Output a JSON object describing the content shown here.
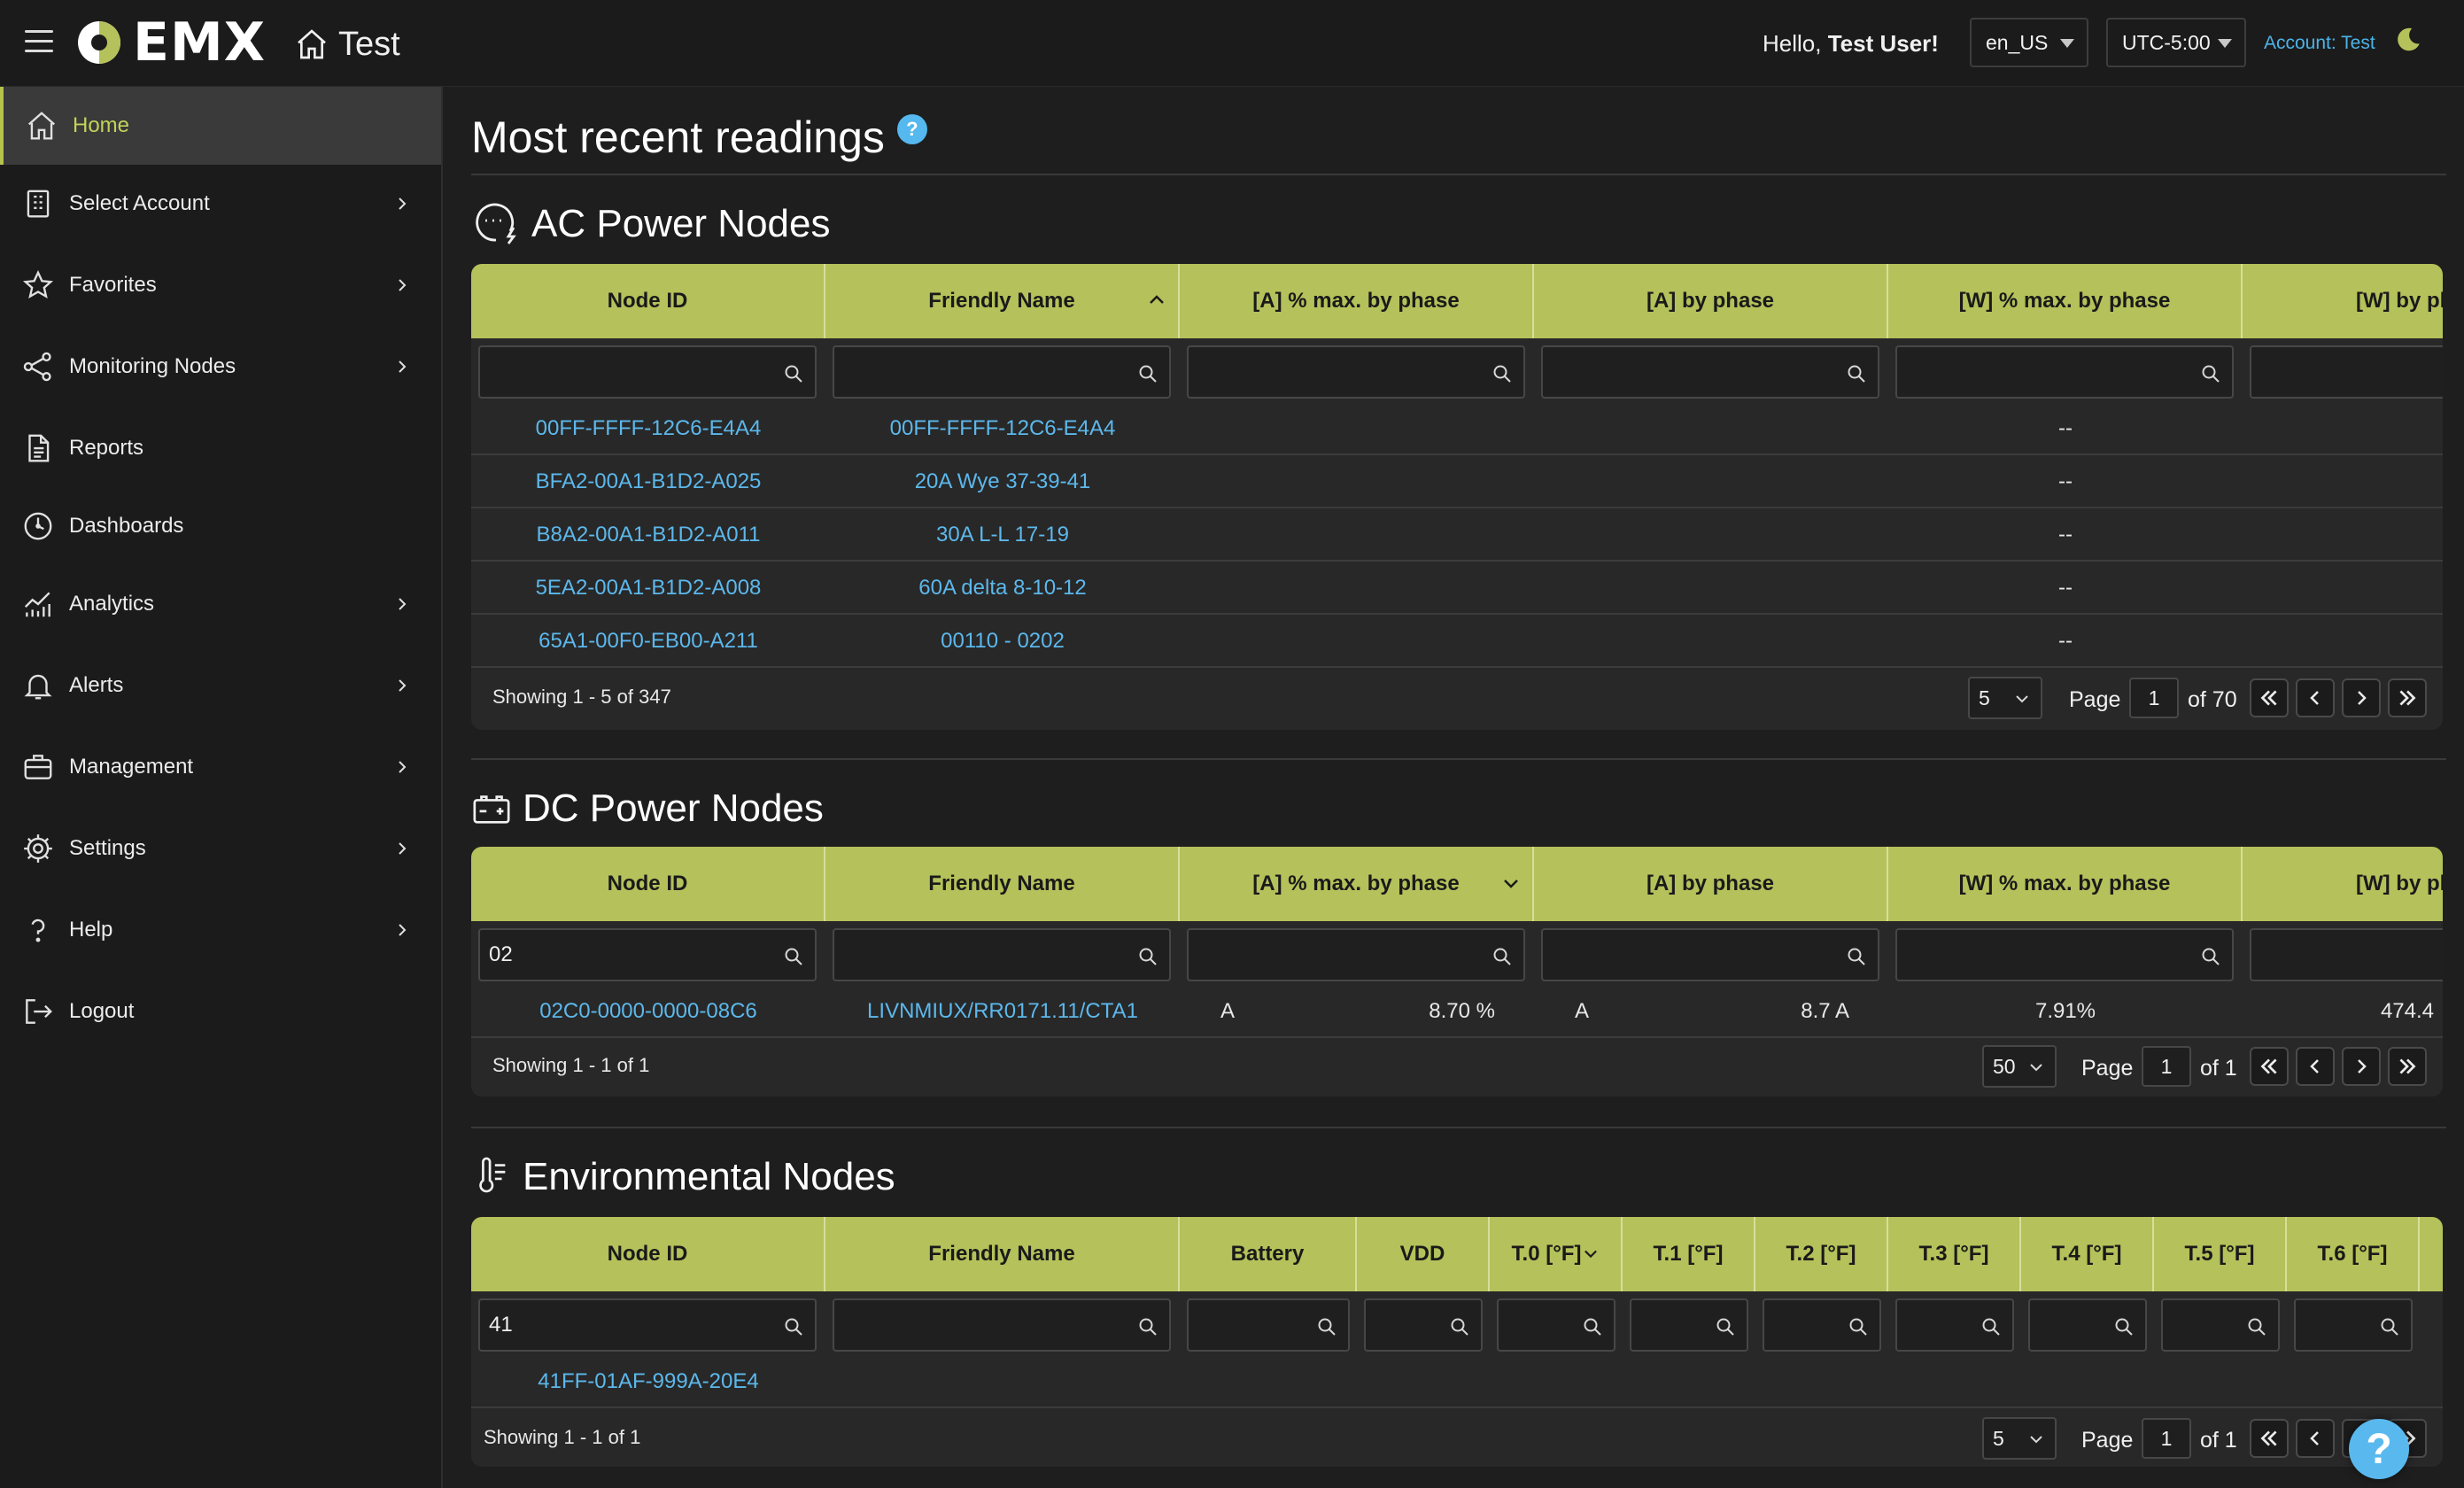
{
  "header": {
    "app_name": "EMX",
    "breadcrumb": "Test",
    "greeting_prefix": "Hello, ",
    "user_name": "Test User!",
    "locale": "en_US",
    "timezone": "UTC-5:00",
    "account": "Account: Test"
  },
  "sidebar": {
    "items": [
      {
        "label": "Home",
        "icon": "home-icon",
        "active": true
      },
      {
        "label": "Select Account",
        "icon": "building-icon"
      },
      {
        "label": "Favorites",
        "icon": "star-icon"
      },
      {
        "label": "Monitoring Nodes",
        "icon": "share-nodes-icon"
      },
      {
        "label": "Reports",
        "icon": "document-icon"
      },
      {
        "label": "Dashboards",
        "icon": "gauge-icon"
      },
      {
        "label": "Analytics",
        "icon": "chart-icon"
      },
      {
        "label": "Alerts",
        "icon": "bell-icon"
      },
      {
        "label": "Management",
        "icon": "briefcase-icon"
      },
      {
        "label": "Settings",
        "icon": "gear-icon"
      },
      {
        "label": "Help",
        "icon": "question-icon"
      },
      {
        "label": "Logout",
        "icon": "logout-icon"
      }
    ]
  },
  "page": {
    "title": "Most recent readings",
    "help": "?"
  },
  "ac": {
    "title": "AC Power Nodes",
    "columns": [
      "Node ID",
      "Friendly Name",
      "[A] % max. by phase",
      "[A] by phase",
      "[W] % max. by phase",
      "[W] by ph"
    ],
    "filters": [
      "",
      "",
      "",
      "",
      "",
      ""
    ],
    "rows": [
      {
        "node_id": "00FF-FFFF-12C6-E4A4",
        "name": "00FF-FFFF-12C6-E4A4",
        "w_pct": "--"
      },
      {
        "node_id": "BFA2-00A1-B1D2-A025",
        "name": "20A Wye 37-39-41",
        "w_pct": "--"
      },
      {
        "node_id": "B8A2-00A1-B1D2-A011",
        "name": "30A L-L 17-19",
        "w_pct": "--"
      },
      {
        "node_id": "5EA2-00A1-B1D2-A008",
        "name": "60A delta 8-10-12",
        "w_pct": "--"
      },
      {
        "node_id": "65A1-00F0-EB00-A211",
        "name": "00110 - 0202",
        "w_pct": "--"
      }
    ],
    "showing": "Showing 1 - 5 of 347",
    "page_size": "5",
    "page_label": "Page",
    "page": "1",
    "of": "of 70"
  },
  "dc": {
    "title": "DC Power Nodes",
    "columns": [
      "Node ID",
      "Friendly Name",
      "[A] % max. by phase",
      "[A] by phase",
      "[W] % max. by phase",
      "[W] by ph"
    ],
    "filters": [
      "02",
      "",
      "",
      "",
      "",
      ""
    ],
    "rows": [
      {
        "node_id": "02C0-0000-0000-08C6",
        "name": "LIVNMIUX/RR0171.11/CTA1",
        "a_pct_phase": "A",
        "a_pct": "8.70 %",
        "a_phase": "A",
        "a_val": "8.7 A",
        "w_pct": "7.91%",
        "w_val": "474.4"
      }
    ],
    "showing": "Showing 1 - 1 of 1",
    "page_size": "50",
    "page_label": "Page",
    "page": "1",
    "of": "of 1"
  },
  "env": {
    "title": "Environmental Nodes",
    "columns": [
      "Node ID",
      "Friendly Name",
      "Battery",
      "VDD",
      "T.0 [°F]",
      "T.1 [°F]",
      "T.2 [°F]",
      "T.3 [°F]",
      "T.4 [°F]",
      "T.5 [°F]",
      "T.6 [°F]"
    ],
    "filters": [
      "41",
      "",
      "",
      "",
      "",
      "",
      "",
      "",
      "",
      "",
      ""
    ],
    "rows": [
      {
        "node_id": "41FF-01AF-999A-20E4"
      }
    ],
    "showing": "Showing 1 - 1 of 1",
    "page_size": "5",
    "page_label": "Page",
    "page": "1",
    "of": "of 1"
  },
  "colors": {
    "accent": "#b5c15a",
    "link": "#5cb8ec",
    "background": "#1e1e1e"
  }
}
